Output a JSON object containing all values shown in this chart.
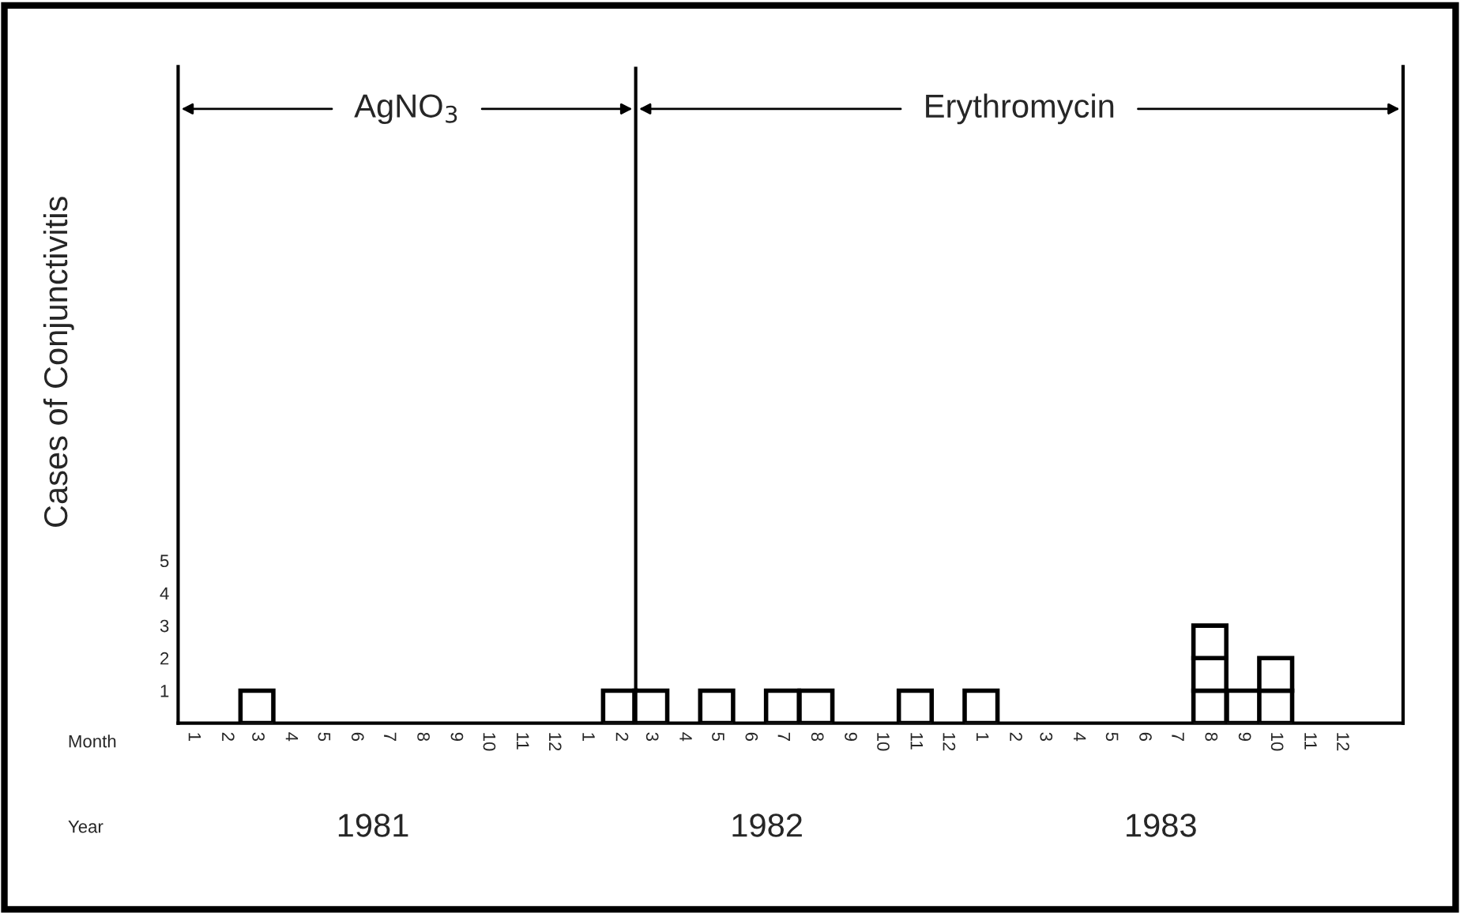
{
  "chart_data": {
    "type": "bar",
    "stacked": true,
    "ylabel": "Cases of Conjunctivitis",
    "x": [
      "1981-03-15",
      "1982-02-14",
      "1982-03-15",
      "1982-05-15",
      "1982-07-15",
      "1982-08-15",
      "1982-11-15",
      "1983-01-15",
      "1983-08-15",
      "1983-09-15",
      "1983-10-15"
    ],
    "series": [
      {
        "color": "#ffffff",
        "values": [
          1,
          1,
          1,
          1,
          1,
          1,
          1,
          1,
          1,
          1,
          1
        ]
      },
      {
        "color": "#ffffff",
        "values": [
          null,
          null,
          null,
          null,
          null,
          null,
          null,
          null,
          1,
          null,
          1
        ]
      },
      {
        "color": "#ffffff",
        "values": [
          null,
          null,
          null,
          null,
          null,
          null,
          null,
          null,
          1,
          null,
          null
        ]
      }
    ],
    "xlim": [
      "1981-01-01",
      "1984-02-10"
    ],
    "xticks": [
      {
        "value": "1981-01-15",
        "label": "1"
      },
      {
        "value": "1981-02-15",
        "label": "2"
      },
      {
        "value": "1981-03-15",
        "label": "3"
      },
      {
        "value": "1981-04-15",
        "label": "4"
      },
      {
        "value": "1981-05-15",
        "label": "5"
      },
      {
        "value": "1981-06-15",
        "label": "6"
      },
      {
        "value": "1981-07-15",
        "label": "7"
      },
      {
        "value": "1981-08-15",
        "label": "8"
      },
      {
        "value": "1981-09-15",
        "label": "9"
      },
      {
        "value": "1981-10-15",
        "label": "10"
      },
      {
        "value": "1981-11-15",
        "label": "11"
      },
      {
        "value": "1981-12-15",
        "label": "12"
      },
      {
        "value": "1982-01-15",
        "label": "1"
      },
      {
        "value": "1982-02-15",
        "label": "2"
      },
      {
        "value": "1982-03-15",
        "label": "3"
      },
      {
        "value": "1982-04-15",
        "label": "4"
      },
      {
        "value": "1982-05-15",
        "label": "5"
      },
      {
        "value": "1982-06-15",
        "label": "6"
      },
      {
        "value": "1982-07-15",
        "label": "7"
      },
      {
        "value": "1982-08-15",
        "label": "8"
      },
      {
        "value": "1982-09-15",
        "label": "9"
      },
      {
        "value": "1982-10-15",
        "label": "10"
      },
      {
        "value": "1982-11-15",
        "label": "11"
      },
      {
        "value": "1982-12-15",
        "label": "12"
      },
      {
        "value": "1983-01-15",
        "label": "1"
      },
      {
        "value": "1983-02-15",
        "label": "2"
      },
      {
        "value": "1983-03-15",
        "label": "3"
      },
      {
        "value": "1983-04-15",
        "label": "4"
      },
      {
        "value": "1983-05-15",
        "label": "5"
      },
      {
        "value": "1983-06-15",
        "label": "6"
      },
      {
        "value": "1983-07-15",
        "label": "7"
      },
      {
        "value": "1983-08-15",
        "label": "8"
      },
      {
        "value": "1983-09-15",
        "label": "9"
      },
      {
        "value": "1983-10-15",
        "label": "10"
      },
      {
        "value": "1983-11-15",
        "label": "11"
      },
      {
        "value": "1983-12-15",
        "label": "12"
      }
    ],
    "ylim": [
      0,
      20.2
    ],
    "yticks": [
      1,
      2,
      3,
      4,
      5
    ],
    "ref_lines": [
      {
        "axis": "x",
        "value": "1982-03-01"
      }
    ],
    "annotations": [
      {
        "text": "AgNO$_{3}$",
        "x": "1982-03-01",
        "y": 18.9
      },
      {
        "text": "Erythromycin",
        "x": "1982-03-01",
        "y": 18.9
      },
      "Month",
      "Year",
      "1981",
      "1982",
      "1983"
    ],
    "grid": false,
    "legend": false
  }
}
